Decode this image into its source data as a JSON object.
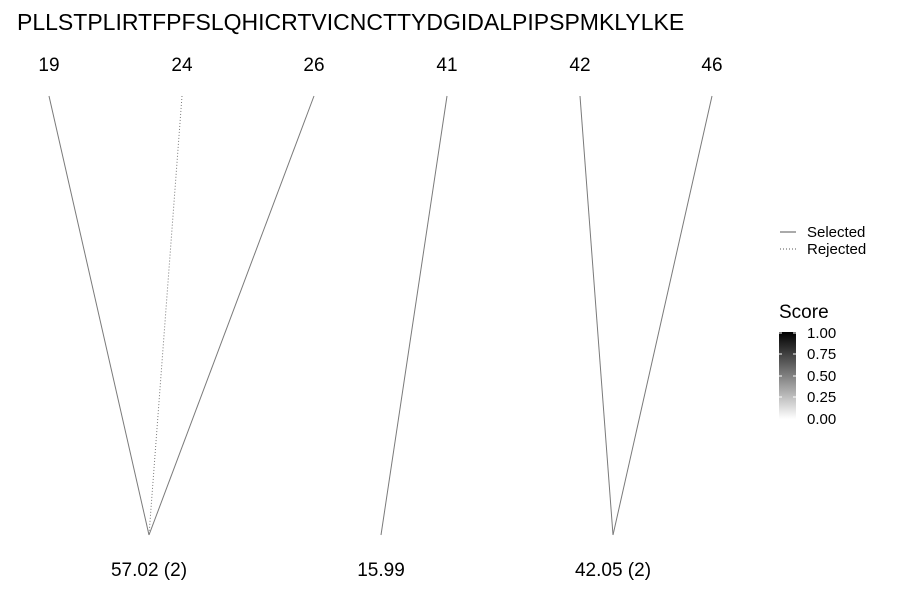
{
  "sequence": "PLLSTPLIRTFPFSLQHICRTVICNCTTYDGIDALPIPSPMKLYLKE",
  "positions": [
    "19",
    "24",
    "26",
    "41",
    "42",
    "46"
  ],
  "scores": [
    "57.02 (2)",
    "15.99",
    "42.05 (2)"
  ],
  "links": [
    {
      "position": "19",
      "score": "57.02 (2)",
      "status": "Selected"
    },
    {
      "position": "24",
      "score": "57.02 (2)",
      "status": "Rejected"
    },
    {
      "position": "26",
      "score": "57.02 (2)",
      "status": "Selected"
    },
    {
      "position": "41",
      "score": "15.99",
      "status": "Selected"
    },
    {
      "position": "42",
      "score": "42.05 (2)",
      "status": "Selected"
    },
    {
      "position": "46",
      "score": "42.05 (2)",
      "status": "Selected"
    }
  ],
  "legend": {
    "line_types": [
      {
        "label": "Selected",
        "style": "solid"
      },
      {
        "label": "Rejected",
        "style": "dotted"
      }
    ],
    "colorbar": {
      "title": "Score",
      "ticks": [
        "1.00",
        "0.75",
        "0.50",
        "0.25",
        "0.00"
      ],
      "color_high": "#000000",
      "color_low": "#ffffff"
    }
  },
  "colors": {
    "line": "#7a7a7a",
    "text": "#000000"
  }
}
